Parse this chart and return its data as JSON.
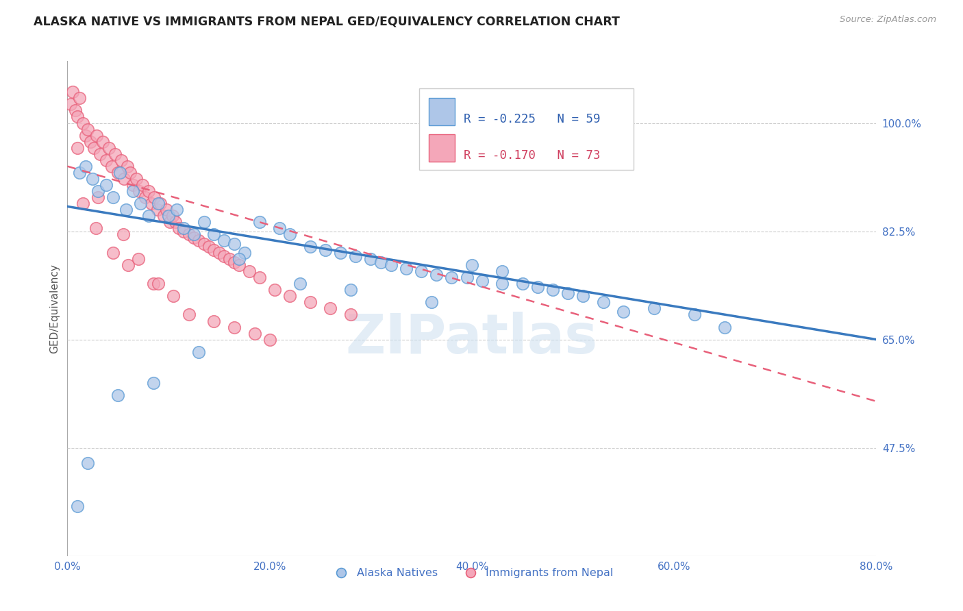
{
  "title": "ALASKA NATIVE VS IMMIGRANTS FROM NEPAL GED/EQUIVALENCY CORRELATION CHART",
  "source": "Source: ZipAtlas.com",
  "ylabel": "GED/Equivalency",
  "xlabel_ticks": [
    "0.0%",
    "20.0%",
    "40.0%",
    "60.0%",
    "80.0%"
  ],
  "xlabel_vals": [
    0.0,
    20.0,
    40.0,
    60.0,
    80.0
  ],
  "ylabel_ticks": [
    "47.5%",
    "65.0%",
    "82.5%",
    "100.0%"
  ],
  "ylabel_vals": [
    47.5,
    65.0,
    82.5,
    100.0
  ],
  "xlim": [
    0.0,
    80.0
  ],
  "ylim": [
    30.0,
    110.0
  ],
  "legend_label1": "R = -0.225   N = 59",
  "legend_label2": "R = -0.170   N = 73",
  "legend_bottom_label1": "Alaska Natives",
  "legend_bottom_label2": "Immigrants from Nepal",
  "blue_color": "#aec6e8",
  "pink_color": "#f4a7b9",
  "blue_edge_color": "#5b9bd5",
  "pink_edge_color": "#e8607a",
  "blue_line_color": "#3a7abf",
  "pink_line_color": "#e8607a",
  "watermark": "ZIPatlas",
  "title_color": "#222222",
  "axis_tick_color": "#4472c4",
  "blue_scatter_x": [
    1.2,
    1.8,
    2.5,
    3.0,
    3.8,
    4.5,
    5.2,
    5.8,
    6.5,
    7.2,
    8.0,
    9.0,
    10.0,
    10.8,
    11.5,
    12.5,
    13.5,
    14.5,
    15.5,
    16.5,
    17.5,
    19.0,
    21.0,
    22.0,
    24.0,
    25.5,
    27.0,
    28.5,
    30.0,
    31.0,
    32.0,
    33.5,
    35.0,
    36.5,
    38.0,
    39.5,
    41.0,
    43.0,
    45.0,
    46.5,
    48.0,
    49.5,
    51.0,
    53.0,
    55.0,
    58.0,
    62.0,
    65.0,
    43.0,
    40.0,
    36.0,
    28.0,
    23.0,
    17.0,
    13.0,
    8.5,
    5.0,
    2.0,
    1.0
  ],
  "blue_scatter_y": [
    92.0,
    93.0,
    91.0,
    89.0,
    90.0,
    88.0,
    92.0,
    86.0,
    89.0,
    87.0,
    85.0,
    87.0,
    85.0,
    86.0,
    83.0,
    82.0,
    84.0,
    82.0,
    81.0,
    80.5,
    79.0,
    84.0,
    83.0,
    82.0,
    80.0,
    79.5,
    79.0,
    78.5,
    78.0,
    77.5,
    77.0,
    76.5,
    76.0,
    75.5,
    75.0,
    75.0,
    74.5,
    74.0,
    74.0,
    73.5,
    73.0,
    72.5,
    72.0,
    71.0,
    69.5,
    70.0,
    69.0,
    67.0,
    76.0,
    77.0,
    71.0,
    73.0,
    74.0,
    78.0,
    63.0,
    58.0,
    56.0,
    45.0,
    38.0
  ],
  "pink_scatter_x": [
    0.3,
    0.5,
    0.8,
    1.0,
    1.2,
    1.5,
    1.8,
    2.0,
    2.3,
    2.6,
    2.9,
    3.2,
    3.5,
    3.8,
    4.1,
    4.4,
    4.7,
    5.0,
    5.3,
    5.6,
    5.9,
    6.2,
    6.5,
    6.8,
    7.1,
    7.4,
    7.7,
    8.0,
    8.3,
    8.6,
    8.9,
    9.2,
    9.5,
    9.8,
    10.1,
    10.4,
    10.7,
    11.0,
    11.5,
    12.0,
    12.5,
    13.0,
    13.5,
    14.0,
    14.5,
    15.0,
    15.5,
    16.0,
    16.5,
    17.0,
    18.0,
    19.0,
    20.5,
    22.0,
    24.0,
    26.0,
    28.0,
    3.0,
    1.5,
    2.8,
    4.5,
    6.0,
    8.5,
    10.5,
    12.0,
    14.5,
    16.5,
    18.5,
    20.0,
    1.0,
    5.5,
    7.0,
    9.0
  ],
  "pink_scatter_y": [
    103.0,
    105.0,
    102.0,
    101.0,
    104.0,
    100.0,
    98.0,
    99.0,
    97.0,
    96.0,
    98.0,
    95.0,
    97.0,
    94.0,
    96.0,
    93.0,
    95.0,
    92.0,
    94.0,
    91.0,
    93.0,
    92.0,
    90.0,
    91.0,
    89.0,
    90.0,
    88.0,
    89.0,
    87.0,
    88.0,
    86.0,
    87.0,
    85.0,
    86.0,
    84.0,
    85.0,
    84.0,
    83.0,
    82.5,
    82.0,
    81.5,
    81.0,
    80.5,
    80.0,
    79.5,
    79.0,
    78.5,
    78.0,
    77.5,
    77.0,
    76.0,
    75.0,
    73.0,
    72.0,
    71.0,
    70.0,
    69.0,
    88.0,
    87.0,
    83.0,
    79.0,
    77.0,
    74.0,
    72.0,
    69.0,
    68.0,
    67.0,
    66.0,
    65.0,
    96.0,
    82.0,
    78.0,
    74.0
  ],
  "blue_trend_x0": 0.0,
  "blue_trend_x1": 80.0,
  "blue_trend_y0": 86.5,
  "blue_trend_y1": 65.0,
  "pink_trend_x0": 0.0,
  "pink_trend_x1": 80.0,
  "pink_trend_y0": 93.0,
  "pink_trend_y1": 55.0
}
